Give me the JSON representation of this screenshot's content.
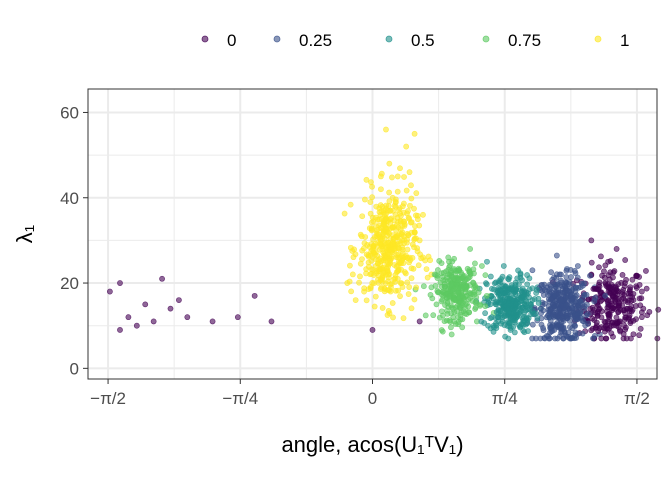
{
  "chart_data": {
    "type": "scatter",
    "title": "",
    "xlabel": "angle, acos(U₁ᵀV₁)",
    "ylabel": "λ₁",
    "xlim": [
      -1.69,
      1.69
    ],
    "ylim": [
      -2.5,
      65.5
    ],
    "x_ticks": [
      {
        "value": -1.5708,
        "label": "−π/2"
      },
      {
        "value": -0.7854,
        "label": "−π/4"
      },
      {
        "value": 0,
        "label": "0"
      },
      {
        "value": 0.7854,
        "label": "π/4"
      },
      {
        "value": 1.5708,
        "label": "π/2"
      }
    ],
    "y_ticks": [
      {
        "value": 0,
        "label": "0"
      },
      {
        "value": 20,
        "label": "20"
      },
      {
        "value": 40,
        "label": "40"
      },
      {
        "value": 60,
        "label": "60"
      }
    ],
    "grid": true,
    "legend_position": "top",
    "series": [
      {
        "name": "1",
        "color": "#FDE725",
        "points": [
          [
            -0.15,
            20
          ],
          [
            -0.05,
            18
          ],
          [
            0.02,
            24
          ],
          [
            0.05,
            30
          ],
          [
            0.08,
            35
          ],
          [
            0.1,
            28
          ],
          [
            0.12,
            40
          ],
          [
            0.15,
            45
          ],
          [
            0.2,
            52
          ],
          [
            0.18,
            38
          ],
          [
            0.25,
            32
          ],
          [
            0.3,
            26
          ],
          [
            0.35,
            22
          ],
          [
            0.1,
            48
          ],
          [
            0.05,
            42
          ],
          [
            0.22,
            46
          ],
          [
            0.08,
            56
          ],
          [
            0.25,
            55
          ],
          [
            0.3,
            36
          ],
          [
            0.15,
            21
          ],
          [
            -0.1,
            16
          ],
          [
            0,
            26
          ],
          [
            0.28,
            30
          ],
          [
            0.12,
            33
          ],
          [
            0.18,
            27
          ]
        ]
      },
      {
        "name": "0.75",
        "color": "#5EC962",
        "points": [
          [
            0.42,
            18
          ],
          [
            0.45,
            22
          ],
          [
            0.5,
            16
          ],
          [
            0.55,
            14
          ],
          [
            0.6,
            20
          ],
          [
            0.65,
            24
          ],
          [
            0.7,
            17
          ],
          [
            0.48,
            12
          ],
          [
            0.38,
            15
          ],
          [
            0.62,
            11
          ],
          [
            0.45,
            26
          ],
          [
            0.55,
            19
          ],
          [
            0.58,
            28
          ],
          [
            0.72,
            13
          ],
          [
            0.35,
            19
          ]
        ]
      },
      {
        "name": "0.5",
        "color": "#21918C",
        "points": [
          [
            0.7,
            15
          ],
          [
            0.75,
            20
          ],
          [
            0.8,
            13
          ],
          [
            0.85,
            18
          ],
          [
            0.9,
            11
          ],
          [
            0.95,
            16
          ],
          [
            1,
            14
          ],
          [
            1.05,
            12
          ],
          [
            0.78,
            24
          ],
          [
            0.88,
            22
          ],
          [
            0.98,
            19
          ],
          [
            0.72,
            10
          ],
          [
            0.82,
            9
          ],
          [
            1.08,
            17
          ],
          [
            0.68,
            25
          ]
        ]
      },
      {
        "name": "0.25",
        "color": "#3B528B",
        "points": [
          [
            1.0,
            14
          ],
          [
            1.05,
            18
          ],
          [
            1.1,
            12
          ],
          [
            1.15,
            20
          ],
          [
            1.2,
            10
          ],
          [
            1.25,
            16
          ],
          [
            1.3,
            13
          ],
          [
            1.35,
            8
          ],
          [
            1.12,
            22
          ],
          [
            1.22,
            24
          ],
          [
            1.32,
            19
          ],
          [
            1.08,
            9
          ],
          [
            0.95,
            23
          ],
          [
            1.4,
            15
          ],
          [
            1.18,
            7
          ]
        ]
      },
      {
        "name": "0",
        "color": "#440154",
        "points": [
          [
            -1.56,
            18
          ],
          [
            -1.5,
            20
          ],
          [
            -1.45,
            12
          ],
          [
            -1.4,
            10
          ],
          [
            -1.35,
            15
          ],
          [
            -1.3,
            11
          ],
          [
            -1.25,
            21
          ],
          [
            -1.2,
            14
          ],
          [
            -1.15,
            16
          ],
          [
            -1.1,
            12
          ],
          [
            -1.5,
            9
          ],
          [
            -0.95,
            11
          ],
          [
            -0.7,
            17
          ],
          [
            -0.6,
            11
          ],
          [
            -0.8,
            12
          ],
          [
            0,
            9
          ],
          [
            0.28,
            11
          ],
          [
            1.3,
            22
          ],
          [
            1.4,
            25
          ],
          [
            1.5,
            20
          ],
          [
            1.55,
            16
          ],
          [
            1.6,
            18
          ],
          [
            1.45,
            10
          ],
          [
            1.5,
            13
          ],
          [
            1.35,
            14
          ],
          [
            1.6,
            12
          ],
          [
            1.45,
            28
          ],
          [
            1.3,
            30
          ],
          [
            1.55,
            8
          ],
          [
            1.42,
            18
          ]
        ]
      }
    ],
    "legend_order": [
      "0",
      "0.25",
      "0.5",
      "0.75",
      "1"
    ]
  }
}
